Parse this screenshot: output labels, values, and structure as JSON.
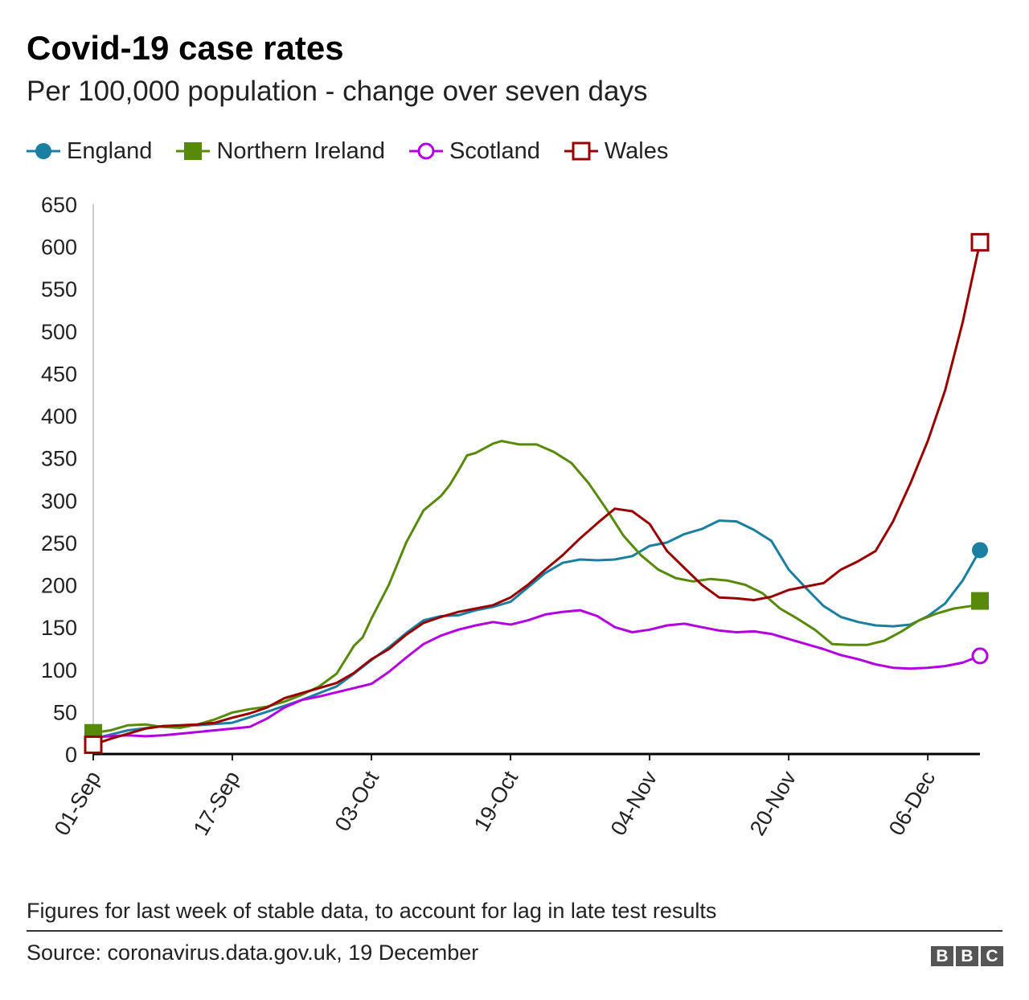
{
  "header": {
    "title": "Covid-19 case rates",
    "subtitle": "Per 100,000 population - change over seven days"
  },
  "footer": {
    "note": "Figures for last week of stable data, to account for lag in late test results",
    "source": "Source: coronavirus.data.gov.uk, 19 December",
    "logo_letters": [
      "B",
      "B",
      "C"
    ]
  },
  "chart_data": {
    "type": "line",
    "title": "Covid-19 case rates",
    "subtitle": "Per 100,000 population - change over seven days",
    "ylim": [
      0,
      650
    ],
    "yticks": [
      0,
      50,
      100,
      150,
      200,
      250,
      300,
      350,
      400,
      450,
      500,
      550,
      600,
      650
    ],
    "x_start": "2020-09-01",
    "x_end": "2020-12-12",
    "xticks": [
      {
        "date": "2020-09-01",
        "label": "01-Sep"
      },
      {
        "date": "2020-09-17",
        "label": "17-Sep"
      },
      {
        "date": "2020-10-03",
        "label": "03-Oct"
      },
      {
        "date": "2020-10-19",
        "label": "19-Oct"
      },
      {
        "date": "2020-11-04",
        "label": "04-Nov"
      },
      {
        "date": "2020-11-20",
        "label": "20-Nov"
      },
      {
        "date": "2020-12-06",
        "label": "06-Dec"
      }
    ],
    "grid": false,
    "legend_position": "top-left",
    "series": [
      {
        "name": "England",
        "color": "#1a7fa0",
        "marker": "circle-filled",
        "points": [
          [
            "2020-09-01",
            18
          ],
          [
            "2020-09-05",
            28
          ],
          [
            "2020-09-09",
            33
          ],
          [
            "2020-09-13",
            34
          ],
          [
            "2020-09-17",
            37
          ],
          [
            "2020-09-21",
            50
          ],
          [
            "2020-09-25",
            64
          ],
          [
            "2020-09-29",
            80
          ],
          [
            "2020-10-01",
            95
          ],
          [
            "2020-10-03",
            111
          ],
          [
            "2020-10-05",
            126
          ],
          [
            "2020-10-07",
            143
          ],
          [
            "2020-10-09",
            158
          ],
          [
            "2020-10-11",
            163
          ],
          [
            "2020-10-13",
            164
          ],
          [
            "2020-10-15",
            170
          ],
          [
            "2020-10-17",
            174
          ],
          [
            "2020-10-19",
            180
          ],
          [
            "2020-10-21",
            197
          ],
          [
            "2020-10-23",
            214
          ],
          [
            "2020-10-25",
            226
          ],
          [
            "2020-10-27",
            230
          ],
          [
            "2020-10-29",
            229
          ],
          [
            "2020-10-31",
            230
          ],
          [
            "2020-11-02",
            234
          ],
          [
            "2020-11-04",
            246
          ],
          [
            "2020-11-06",
            250
          ],
          [
            "2020-11-08",
            260
          ],
          [
            "2020-11-10",
            266
          ],
          [
            "2020-11-12",
            276
          ],
          [
            "2020-11-14",
            275
          ],
          [
            "2020-11-16",
            265
          ],
          [
            "2020-11-18",
            252
          ],
          [
            "2020-11-20",
            218
          ],
          [
            "2020-11-22",
            196
          ],
          [
            "2020-11-24",
            175
          ],
          [
            "2020-11-26",
            162
          ],
          [
            "2020-11-28",
            156
          ],
          [
            "2020-11-30",
            152
          ],
          [
            "2020-12-02",
            151
          ],
          [
            "2020-12-04",
            153
          ],
          [
            "2020-12-06",
            163
          ],
          [
            "2020-12-08",
            178
          ],
          [
            "2020-12-10",
            205
          ],
          [
            "2020-12-12",
            241
          ]
        ]
      },
      {
        "name": "Northern Ireland",
        "color": "#588a0a",
        "marker": "square-filled",
        "points": [
          [
            "2020-09-01",
            25
          ],
          [
            "2020-09-03",
            28
          ],
          [
            "2020-09-05",
            34
          ],
          [
            "2020-09-07",
            35
          ],
          [
            "2020-09-09",
            32
          ],
          [
            "2020-09-11",
            31
          ],
          [
            "2020-09-13",
            35
          ],
          [
            "2020-09-15",
            41
          ],
          [
            "2020-09-17",
            49
          ],
          [
            "2020-09-19",
            53
          ],
          [
            "2020-09-21",
            56
          ],
          [
            "2020-09-23",
            62
          ],
          [
            "2020-09-25",
            70
          ],
          [
            "2020-09-27",
            80
          ],
          [
            "2020-09-29",
            95
          ],
          [
            "2020-10-01",
            128
          ],
          [
            "2020-10-02",
            138
          ],
          [
            "2020-10-03",
            160
          ],
          [
            "2020-10-05",
            200
          ],
          [
            "2020-10-07",
            250
          ],
          [
            "2020-10-09",
            288
          ],
          [
            "2020-10-11",
            305
          ],
          [
            "2020-10-12",
            318
          ],
          [
            "2020-10-13",
            335
          ],
          [
            "2020-10-14",
            353
          ],
          [
            "2020-10-15",
            356
          ],
          [
            "2020-10-17",
            367
          ],
          [
            "2020-10-18",
            370
          ],
          [
            "2020-10-19",
            368
          ],
          [
            "2020-10-20",
            366
          ],
          [
            "2020-10-22",
            366
          ],
          [
            "2020-10-24",
            357
          ],
          [
            "2020-10-26",
            344
          ],
          [
            "2020-10-28",
            320
          ],
          [
            "2020-10-30",
            290
          ],
          [
            "2020-11-01",
            258
          ],
          [
            "2020-11-03",
            235
          ],
          [
            "2020-11-05",
            218
          ],
          [
            "2020-11-07",
            208
          ],
          [
            "2020-11-09",
            204
          ],
          [
            "2020-11-11",
            207
          ],
          [
            "2020-11-13",
            205
          ],
          [
            "2020-11-15",
            200
          ],
          [
            "2020-11-17",
            190
          ],
          [
            "2020-11-19",
            172
          ],
          [
            "2020-11-21",
            160
          ],
          [
            "2020-11-23",
            147
          ],
          [
            "2020-11-25",
            130
          ],
          [
            "2020-11-27",
            129
          ],
          [
            "2020-11-29",
            129
          ],
          [
            "2020-12-01",
            134
          ],
          [
            "2020-12-03",
            145
          ],
          [
            "2020-12-05",
            158
          ],
          [
            "2020-12-07",
            166
          ],
          [
            "2020-12-09",
            172
          ],
          [
            "2020-12-11",
            175
          ],
          [
            "2020-12-12",
            181
          ]
        ]
      },
      {
        "name": "Scotland",
        "color": "#b400e0",
        "marker": "circle-open",
        "points": [
          [
            "2020-09-01",
            20
          ],
          [
            "2020-09-03",
            21
          ],
          [
            "2020-09-05",
            22
          ],
          [
            "2020-09-07",
            21
          ],
          [
            "2020-09-09",
            22
          ],
          [
            "2020-09-11",
            24
          ],
          [
            "2020-09-13",
            26
          ],
          [
            "2020-09-15",
            28
          ],
          [
            "2020-09-17",
            30
          ],
          [
            "2020-09-19",
            32
          ],
          [
            "2020-09-21",
            42
          ],
          [
            "2020-09-23",
            55
          ],
          [
            "2020-09-25",
            64
          ],
          [
            "2020-09-27",
            68
          ],
          [
            "2020-09-29",
            73
          ],
          [
            "2020-10-01",
            78
          ],
          [
            "2020-10-03",
            83
          ],
          [
            "2020-10-05",
            97
          ],
          [
            "2020-10-07",
            114
          ],
          [
            "2020-10-09",
            130
          ],
          [
            "2020-10-11",
            140
          ],
          [
            "2020-10-13",
            147
          ],
          [
            "2020-10-15",
            152
          ],
          [
            "2020-10-17",
            156
          ],
          [
            "2020-10-19",
            153
          ],
          [
            "2020-10-21",
            158
          ],
          [
            "2020-10-23",
            165
          ],
          [
            "2020-10-25",
            168
          ],
          [
            "2020-10-27",
            170
          ],
          [
            "2020-10-29",
            163
          ],
          [
            "2020-10-31",
            150
          ],
          [
            "2020-11-02",
            144
          ],
          [
            "2020-11-04",
            147
          ],
          [
            "2020-11-06",
            152
          ],
          [
            "2020-11-08",
            154
          ],
          [
            "2020-11-10",
            150
          ],
          [
            "2020-11-12",
            146
          ],
          [
            "2020-11-14",
            144
          ],
          [
            "2020-11-16",
            145
          ],
          [
            "2020-11-18",
            142
          ],
          [
            "2020-11-20",
            136
          ],
          [
            "2020-11-22",
            130
          ],
          [
            "2020-11-24",
            124
          ],
          [
            "2020-11-26",
            117
          ],
          [
            "2020-11-28",
            112
          ],
          [
            "2020-11-30",
            106
          ],
          [
            "2020-12-02",
            102
          ],
          [
            "2020-12-04",
            101
          ],
          [
            "2020-12-06",
            102
          ],
          [
            "2020-12-08",
            104
          ],
          [
            "2020-12-10",
            108
          ],
          [
            "2020-12-12",
            116
          ]
        ]
      },
      {
        "name": "Wales",
        "color": "#990000",
        "marker": "square-open",
        "points": [
          [
            "2020-09-01",
            11
          ],
          [
            "2020-09-03",
            18
          ],
          [
            "2020-09-05",
            24
          ],
          [
            "2020-09-07",
            30
          ],
          [
            "2020-09-09",
            33
          ],
          [
            "2020-09-11",
            34
          ],
          [
            "2020-09-13",
            35
          ],
          [
            "2020-09-15",
            37
          ],
          [
            "2020-09-17",
            43
          ],
          [
            "2020-09-19",
            48
          ],
          [
            "2020-09-21",
            55
          ],
          [
            "2020-09-23",
            66
          ],
          [
            "2020-09-25",
            72
          ],
          [
            "2020-09-27",
            78
          ],
          [
            "2020-09-29",
            84
          ],
          [
            "2020-10-01",
            96
          ],
          [
            "2020-10-03",
            112
          ],
          [
            "2020-10-05",
            124
          ],
          [
            "2020-10-07",
            141
          ],
          [
            "2020-10-09",
            155
          ],
          [
            "2020-10-11",
            162
          ],
          [
            "2020-10-13",
            168
          ],
          [
            "2020-10-15",
            172
          ],
          [
            "2020-10-17",
            176
          ],
          [
            "2020-10-19",
            185
          ],
          [
            "2020-10-21",
            200
          ],
          [
            "2020-10-23",
            218
          ],
          [
            "2020-10-25",
            235
          ],
          [
            "2020-10-27",
            255
          ],
          [
            "2020-10-29",
            273
          ],
          [
            "2020-10-31",
            290
          ],
          [
            "2020-11-02",
            287
          ],
          [
            "2020-11-04",
            272
          ],
          [
            "2020-11-06",
            240
          ],
          [
            "2020-11-08",
            220
          ],
          [
            "2020-11-10",
            200
          ],
          [
            "2020-11-12",
            185
          ],
          [
            "2020-11-14",
            184
          ],
          [
            "2020-11-16",
            182
          ],
          [
            "2020-11-18",
            186
          ],
          [
            "2020-11-20",
            194
          ],
          [
            "2020-11-22",
            198
          ],
          [
            "2020-11-24",
            202
          ],
          [
            "2020-11-26",
            218
          ],
          [
            "2020-11-28",
            228
          ],
          [
            "2020-11-30",
            240
          ],
          [
            "2020-12-02",
            275
          ],
          [
            "2020-12-04",
            320
          ],
          [
            "2020-12-06",
            370
          ],
          [
            "2020-12-08",
            430
          ],
          [
            "2020-12-10",
            510
          ],
          [
            "2020-12-12",
            605
          ]
        ]
      }
    ]
  }
}
